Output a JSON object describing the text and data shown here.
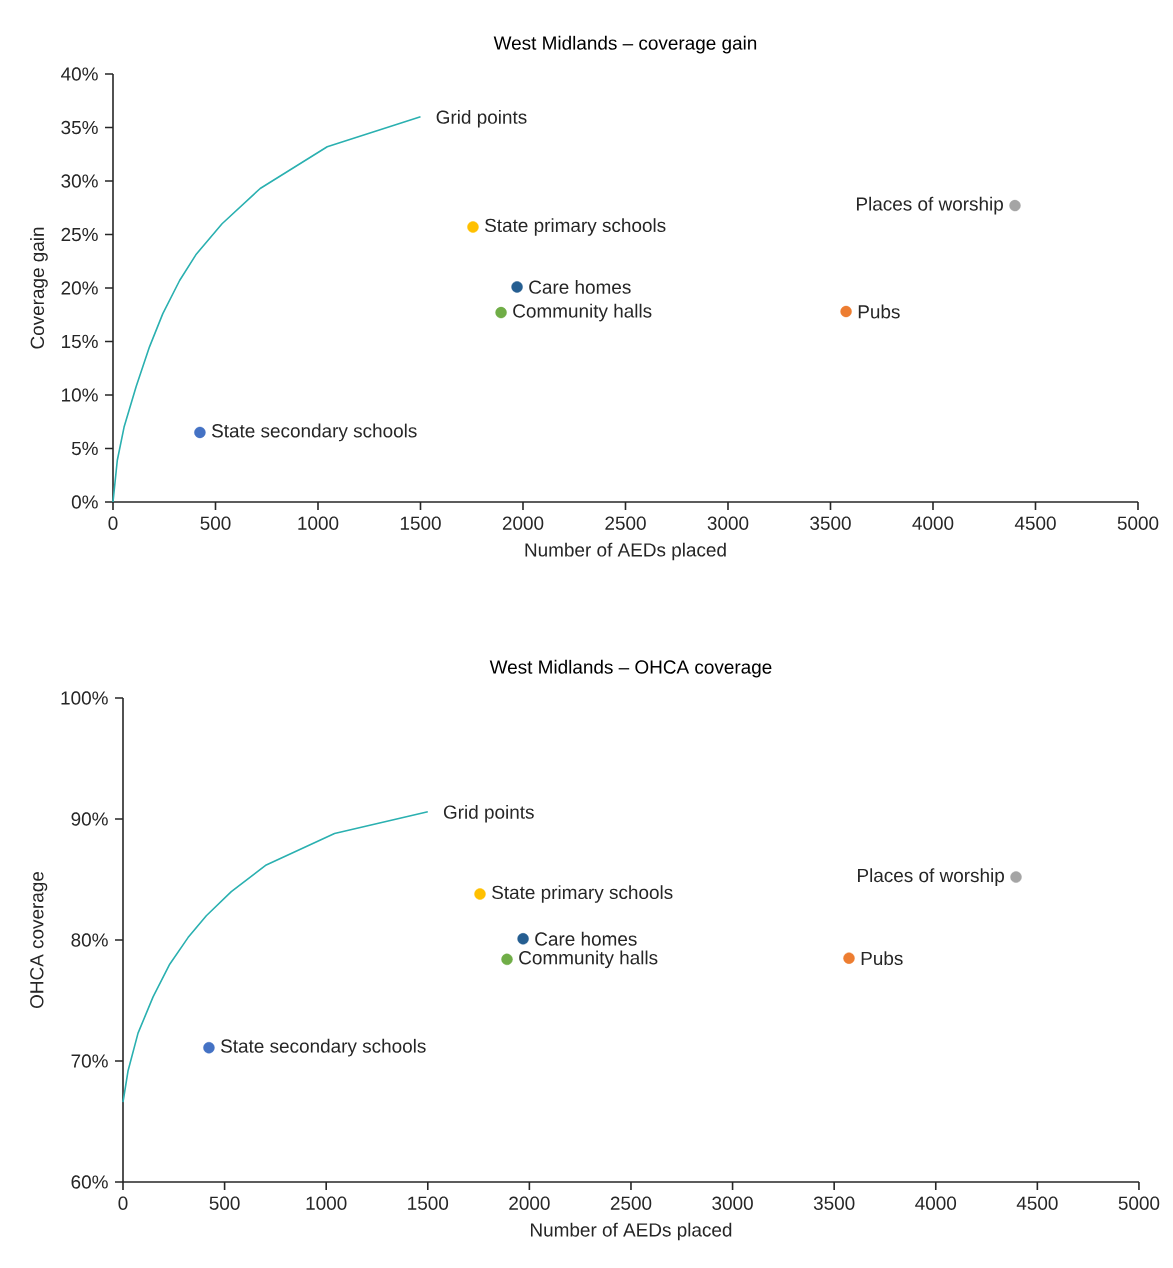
{
  "chart_data": [
    {
      "type": "scatter",
      "title": "West Midlands – coverage gain",
      "xlabel": "Number of AEDs placed",
      "ylabel": "Coverage gain",
      "xlim": [
        0,
        5000
      ],
      "ylim": [
        0,
        40
      ],
      "xticks": [
        0,
        500,
        1000,
        1500,
        2000,
        2500,
        3000,
        3500,
        4000,
        4500,
        5000
      ],
      "yticks": [
        {
          "value": 0,
          "label": "0%"
        },
        {
          "value": 5,
          "label": "5%"
        },
        {
          "value": 10,
          "label": "10%"
        },
        {
          "value": 15,
          "label": "15%"
        },
        {
          "value": 20,
          "label": "20%"
        },
        {
          "value": 25,
          "label": "25%"
        },
        {
          "value": 30,
          "label": "30%"
        },
        {
          "value": 35,
          "label": "35%"
        },
        {
          "value": 40,
          "label": "40%"
        }
      ],
      "series": [
        {
          "name": "Grid points",
          "type": "line",
          "marker": "none",
          "line_style": "solid",
          "color": "#2ab0b0",
          "x": [
            0,
            21,
            54,
            113,
            178,
            243,
            325,
            404,
            532,
            718,
            1045,
            1500
          ],
          "values": [
            0,
            3.9,
            7.0,
            10.8,
            14.5,
            17.6,
            20.7,
            23.1,
            26.0,
            29.3,
            33.2,
            36.0
          ]
        },
        {
          "name": "State secondary schools",
          "type": "scatter",
          "marker": "circle",
          "color": "#4472c4",
          "x": [
            424
          ],
          "values": [
            6.5
          ]
        },
        {
          "name": "State primary schools",
          "type": "scatter",
          "marker": "circle",
          "color": "#ffc000",
          "x": [
            1756
          ],
          "values": [
            25.7
          ]
        },
        {
          "name": "Care homes",
          "type": "scatter",
          "marker": "circle",
          "color": "#255e91",
          "x": [
            1971
          ],
          "values": [
            20.1
          ]
        },
        {
          "name": "Community halls",
          "type": "scatter",
          "marker": "circle",
          "color": "#70ad47",
          "x": [
            1893
          ],
          "values": [
            17.7
          ]
        },
        {
          "name": "Pubs",
          "type": "scatter",
          "marker": "circle",
          "color": "#ed7d31",
          "x": [
            3576
          ],
          "values": [
            17.8
          ]
        },
        {
          "name": "Places of worship",
          "type": "scatter",
          "marker": "circle",
          "color": "#a5a5a5",
          "x": [
            4400
          ],
          "values": [
            27.7
          ]
        }
      ]
    },
    {
      "type": "scatter",
      "title": "West Midlands – OHCA coverage",
      "xlabel": "Number of AEDs placed",
      "ylabel": "OHCA coverage",
      "xlim": [
        0,
        5000
      ],
      "ylim": [
        60,
        100
      ],
      "xticks": [
        0,
        500,
        1000,
        1500,
        2000,
        2500,
        3000,
        3500,
        4000,
        4500,
        5000
      ],
      "yticks": [
        {
          "value": 60,
          "label": "60%"
        },
        {
          "value": 70,
          "label": "70%"
        },
        {
          "value": 80,
          "label": "80%"
        },
        {
          "value": 90,
          "label": "90%"
        },
        {
          "value": 100,
          "label": "100%"
        }
      ],
      "series": [
        {
          "name": "Grid points",
          "type": "line",
          "marker": "none",
          "line_style": "solid",
          "color": "#2ab0b0",
          "x": [
            0,
            25,
            74,
            148,
            230,
            320,
            410,
            533,
            705,
            1041,
            1500
          ],
          "values": [
            66.6,
            69.2,
            72.3,
            75.3,
            78.0,
            80.2,
            82.0,
            84.0,
            86.2,
            88.8,
            90.6
          ]
        },
        {
          "name": "State secondary schools",
          "type": "scatter",
          "marker": "circle",
          "color": "#4472c4",
          "x": [
            423
          ],
          "values": [
            71.1
          ]
        },
        {
          "name": "State primary schools",
          "type": "scatter",
          "marker": "circle",
          "color": "#ffc000",
          "x": [
            1757
          ],
          "values": [
            83.8
          ]
        },
        {
          "name": "Care homes",
          "type": "scatter",
          "marker": "circle",
          "color": "#255e91",
          "x": [
            1969
          ],
          "values": [
            80.1
          ]
        },
        {
          "name": "Community halls",
          "type": "scatter",
          "marker": "circle",
          "color": "#70ad47",
          "x": [
            1890
          ],
          "values": [
            78.4
          ]
        },
        {
          "name": "Pubs",
          "type": "scatter",
          "marker": "circle",
          "color": "#ed7d31",
          "x": [
            3573
          ],
          "values": [
            78.5
          ]
        },
        {
          "name": "Places of worship",
          "type": "scatter",
          "marker": "circle",
          "color": "#a5a5a5",
          "x": [
            4395
          ],
          "values": [
            85.2
          ]
        }
      ]
    }
  ]
}
